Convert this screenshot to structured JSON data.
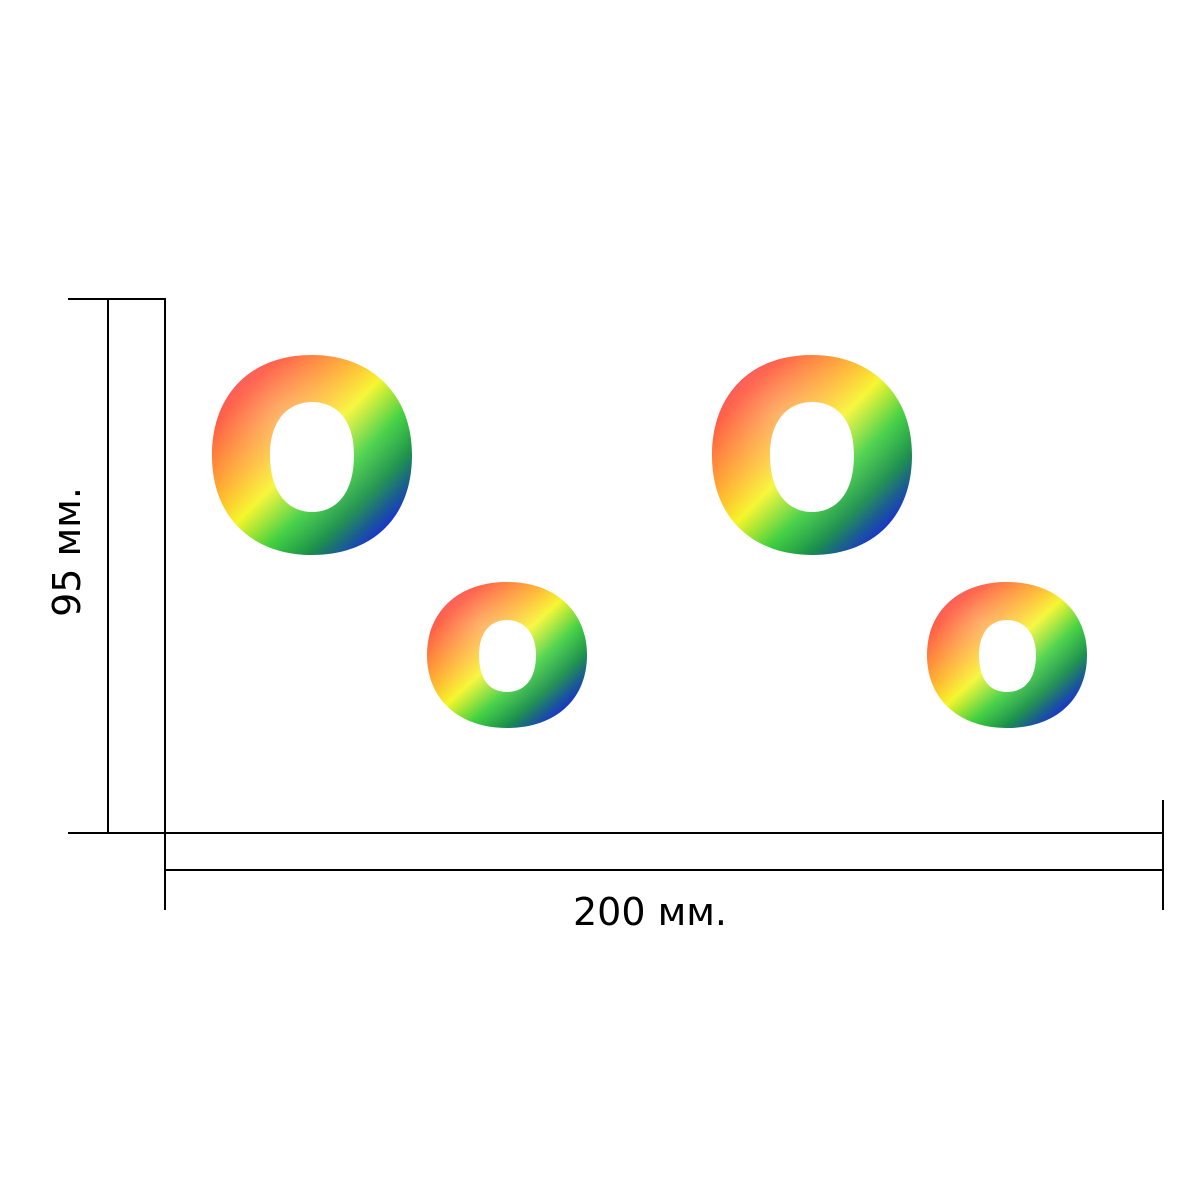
{
  "dimensions": {
    "height_label": "95 мм.",
    "width_label": "200 мм."
  },
  "figure": {
    "letters": [
      {
        "name": "large-letter-o-left",
        "char": "o"
      },
      {
        "name": "small-letter-o-left",
        "char": "o"
      },
      {
        "name": "large-letter-o-right",
        "char": "o"
      },
      {
        "name": "small-letter-o-right",
        "char": "o"
      }
    ],
    "colors": {
      "line": "#000000",
      "rainbow": [
        "#e8185a",
        "#ff3a1a",
        "#ffb31a",
        "#f5f51a",
        "#3ccf3a",
        "#1a8f4a",
        "#1a2cd6",
        "#0a1ae0"
      ]
    }
  }
}
